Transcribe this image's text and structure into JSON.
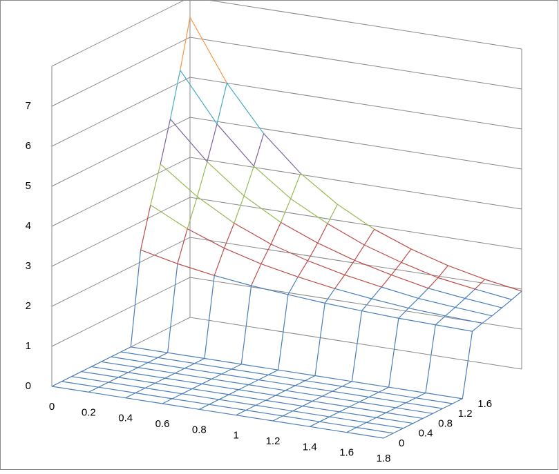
{
  "chart_data": {
    "type": "surface",
    "categories": [
      0,
      0.2,
      0.4,
      0.6,
      0.8,
      1,
      1.2,
      1.4,
      1.6,
      1.8
    ],
    "series": [
      {
        "name": 0,
        "values": [
          0,
          0,
          0,
          0,
          0,
          0,
          0,
          0,
          0,
          0
        ]
      },
      {
        "name": null,
        "values": [
          0,
          0,
          0,
          0,
          0,
          0,
          0,
          0,
          0,
          0
        ]
      },
      {
        "name": 0.4,
        "values": [
          0,
          0,
          0,
          0,
          0,
          0,
          0,
          0,
          0,
          0
        ]
      },
      {
        "name": null,
        "values": [
          0,
          0,
          0,
          0,
          0,
          0,
          0,
          0,
          0,
          0
        ]
      },
      {
        "name": 0.8,
        "values": [
          0,
          0,
          0,
          0,
          0,
          0,
          0,
          0,
          0,
          0
        ]
      },
      {
        "name": null,
        "values": [
          0,
          0,
          0,
          0,
          0,
          0,
          0,
          0,
          0,
          0
        ]
      },
      {
        "name": 1.2,
        "values": [
          0,
          0,
          0,
          0,
          0,
          0,
          0,
          0,
          0,
          0
        ]
      },
      {
        "name": null,
        "values": [
          0,
          0,
          0,
          0,
          0,
          0,
          0,
          0,
          0,
          0
        ]
      },
      {
        "name": 1.6,
        "values": [
          0,
          0,
          0,
          0,
          0,
          0,
          0,
          0,
          0,
          0
        ]
      },
      {
        "name": null,
        "values": [
          2.3,
          2.1,
          1.95,
          1.84,
          1.76,
          1.69,
          1.64,
          1.6,
          1.58,
          1.56
        ]
      },
      {
        "name": null,
        "values": [
          3.3,
          2.85,
          2.51,
          2.26,
          2.08,
          1.93,
          1.82,
          1.73,
          1.68,
          1.64
        ]
      },
      {
        "name": null,
        "values": [
          4.2,
          3.53,
          3.01,
          2.63,
          2.36,
          2.15,
          1.99,
          1.85,
          1.77,
          1.7
        ]
      },
      {
        "name": null,
        "values": [
          5.2,
          4.28,
          3.57,
          3.05,
          2.68,
          2.39,
          2.17,
          1.98,
          1.87,
          1.78
        ]
      },
      {
        "name": null,
        "values": [
          6.3,
          5.1,
          4.19,
          3.52,
          3.04,
          2.65,
          2.36,
          2.12,
          1.98,
          1.86
        ]
      },
      {
        "name": null,
        "values": [
          7.5,
          6.0,
          4.88,
          4.03,
          3.4,
          2.92,
          2.57,
          2.3,
          2.1,
          1.95
        ]
      }
    ],
    "ylim": [
      0,
      8
    ],
    "yticks": [
      0,
      1,
      2,
      3,
      4,
      5,
      6,
      7
    ],
    "band_colors": [
      "#4a7ebb",
      "#4a7ebb",
      "#be4b48",
      "#98b954",
      "#7d60a0",
      "#46aac5",
      "#f79646",
      "#95b3d7"
    ],
    "grid": true
  }
}
